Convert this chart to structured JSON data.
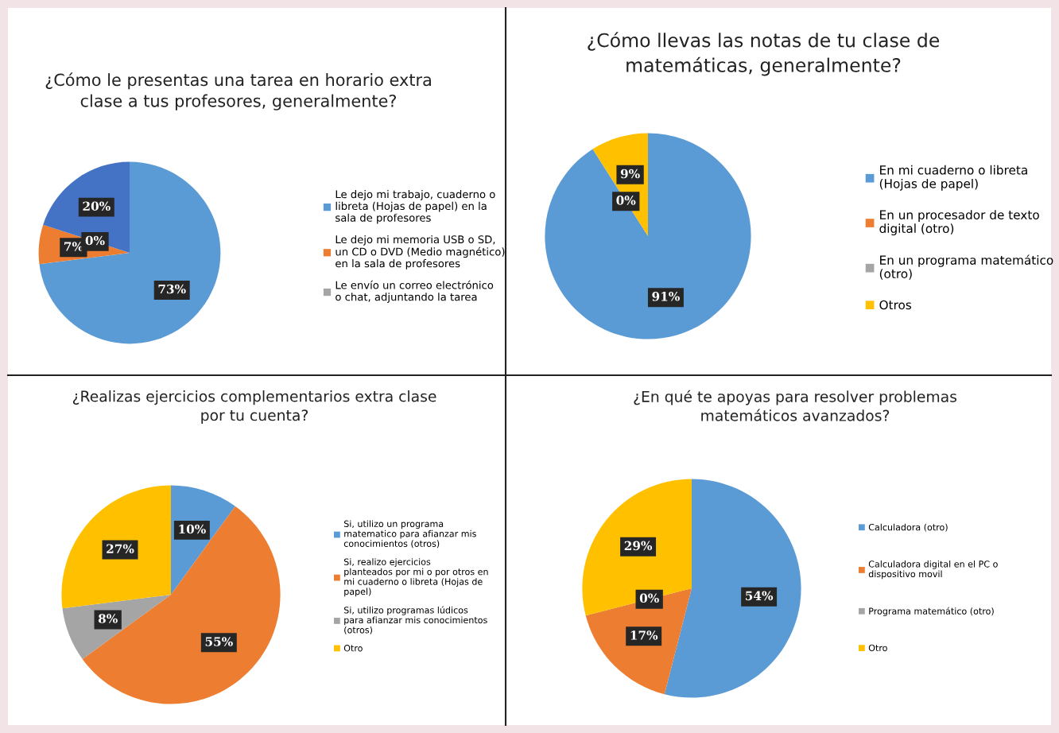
{
  "chart_data": [
    {
      "type": "pie",
      "title": "¿Cómo le presentas una tarea en horario extra clase a tus profesores, generalmente?",
      "categories": [
        "Le dejo mi trabajo, cuaderno o libreta (Hojas de papel) en la sala de profesores",
        "Le dejo mi memoria USB o SD, un CD o DVD (Medio magnético) en la sala de profesores",
        "Le envío un correo electrónico o chat, adjuntando la tarea",
        null
      ],
      "values": [
        73,
        7,
        0,
        20
      ],
      "colors": [
        "#5b9bd5",
        "#ed7d31",
        "#a5a5a5",
        "#4472c4"
      ],
      "value_labels": [
        "73%",
        "7%",
        "0%",
        "20%"
      ],
      "legend": "right"
    },
    {
      "type": "pie",
      "title": "¿Cómo llevas las notas de tu clase de matemáticas, generalmente?",
      "categories": [
        "En mi cuaderno o libreta (Hojas de papel)",
        "En un procesador de texto digital (otro)",
        "En un programa matemático (otro)",
        "Otros"
      ],
      "values": [
        91,
        0,
        0,
        9
      ],
      "colors": [
        "#5b9bd5",
        "#ed7d31",
        "#a5a5a5",
        "#ffc000"
      ],
      "value_labels": [
        "91%",
        "0%",
        null,
        "9%"
      ],
      "legend": "right"
    },
    {
      "type": "pie",
      "title": "¿Realizas ejercicios complementarios extra clase por tu cuenta?",
      "categories": [
        "Si, utilizo un programa matematico para afianzar mis conocimientos (otros)",
        "Si, realizo ejercicios planteados por mi o por otros en mi cuaderno o libreta (Hojas de papel)",
        "Si, utilizo programas lúdicos para afianzar mis conocimientos (otros)",
        "Otro"
      ],
      "values": [
        10,
        55,
        8,
        27
      ],
      "colors": [
        "#5b9bd5",
        "#ed7d31",
        "#a5a5a5",
        "#ffc000"
      ],
      "value_labels": [
        "10%",
        "55%",
        "8%",
        "27%"
      ],
      "legend": "right"
    },
    {
      "type": "pie",
      "title": "¿En qué te apoyas para resolver problemas matemáticos avanzados?",
      "categories": [
        "Calculadora (otro)",
        "Calculadora digital en el PC o dispositivo movil",
        "Programa matemático (otro)",
        "Otro"
      ],
      "values": [
        54,
        17,
        0,
        29
      ],
      "colors": [
        "#5b9bd5",
        "#ed7d31",
        "#a5a5a5",
        "#ffc000"
      ],
      "value_labels": [
        "54%",
        "17%",
        "0%",
        "29%"
      ],
      "legend": "right"
    }
  ]
}
